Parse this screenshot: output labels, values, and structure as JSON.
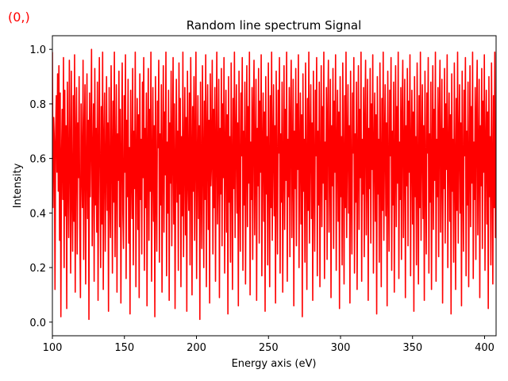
{
  "corner_label": "(0,)",
  "chart_data": {
    "type": "line",
    "title": "Random line spectrum Signal",
    "xlabel": "Energy axis (eV)",
    "ylabel": "Intensity",
    "xlim": [
      100,
      408
    ],
    "ylim": [
      -0.05,
      1.05
    ],
    "x_ticks": [
      100,
      150,
      200,
      250,
      300,
      350,
      400
    ],
    "x_tick_labels": [
      "100",
      "150",
      "200",
      "250",
      "300",
      "350",
      "400"
    ],
    "y_ticks": [
      0.0,
      0.2,
      0.4,
      0.6,
      0.8,
      1.0
    ],
    "y_tick_labels": [
      "0.0",
      "0.2",
      "0.4",
      "0.6",
      "0.8",
      "1.0"
    ],
    "grid": false,
    "series": [
      {
        "color": "#ff0000",
        "x_start": 100,
        "x_end": 408,
        "x_step": 0.5,
        "values": [
          0.99,
          0.42,
          0.75,
          0.66,
          0.12,
          0.7,
          0.83,
          0.55,
          0.91,
          0.48,
          0.94,
          0.3,
          0.84,
          0.02,
          0.6,
          0.78,
          0.45,
          0.97,
          0.2,
          0.85,
          0.39,
          0.72,
          0.05,
          0.88,
          0.54,
          0.31,
          0.96,
          0.62,
          0.18,
          0.92,
          0.47,
          0.26,
          0.83,
          0.37,
          0.98,
          0.11,
          0.66,
          0.86,
          0.25,
          0.73,
          0.53,
          0.9,
          0.35,
          0.09,
          0.8,
          0.58,
          0.42,
          0.96,
          0.23,
          0.68,
          0.87,
          0.14,
          0.55,
          0.91,
          0.38,
          0.74,
          0.01,
          0.84,
          0.46,
          0.67,
          1.0,
          0.28,
          0.59,
          0.8,
          0.15,
          0.93,
          0.43,
          0.71,
          0.33,
          0.88,
          0.08,
          0.62,
          0.97,
          0.51,
          0.2,
          0.79,
          0.36,
          0.99,
          0.12,
          0.65,
          0.84,
          0.26,
          0.56,
          0.9,
          0.41,
          0.73,
          0.04,
          0.86,
          0.49,
          0.31,
          0.94,
          0.63,
          0.18,
          0.81,
          0.44,
          0.99,
          0.24,
          0.58,
          0.87,
          0.11,
          0.69,
          0.52,
          0.92,
          0.35,
          0.78,
          0.07,
          0.61,
          0.95,
          0.4,
          0.27,
          0.83,
          0.55,
          0.98,
          0.16,
          0.74,
          0.46,
          0.89,
          0.29,
          0.64,
          0.03,
          0.85,
          0.57,
          0.38,
          0.93,
          0.21,
          0.7,
          0.49,
          0.99,
          0.13,
          0.6,
          0.82,
          0.34,
          0.76,
          0.09,
          0.91,
          0.45,
          0.67,
          0.25,
          0.88,
          0.53,
          0.97,
          0.19,
          0.71,
          0.42,
          0.84,
          0.06,
          0.62,
          0.93,
          0.3,
          0.78,
          0.48,
          0.99,
          0.15,
          0.57,
          0.86,
          0.37,
          0.72,
          0.02,
          0.9,
          0.5,
          0.26,
          0.81,
          0.64,
          0.96,
          0.22,
          0.69,
          0.43,
          0.87,
          0.11,
          0.59,
          0.94,
          0.33,
          0.77,
          0.54,
          0.99,
          0.17,
          0.66,
          0.4,
          0.85,
          0.08,
          0.73,
          0.51,
          0.92,
          0.28,
          0.63,
          0.97,
          0.36,
          0.8,
          0.05,
          0.58,
          0.89,
          0.44,
          0.7,
          0.19,
          0.95,
          0.47,
          0.82,
          0.13,
          0.68,
          0.39,
          0.99,
          0.24,
          0.61,
          0.86,
          0.32,
          0.75,
          0.04,
          0.92,
          0.55,
          0.41,
          0.84,
          0.21,
          0.97,
          0.64,
          0.1,
          0.79,
          0.48,
          0.9,
          0.3,
          0.66,
          0.99,
          0.16,
          0.57,
          0.83,
          0.38,
          0.72,
          0.01,
          0.88,
          0.52,
          0.27,
          0.94,
          0.62,
          0.2,
          0.81,
          0.45,
          0.98,
          0.13,
          0.69,
          0.87,
          0.34,
          0.74,
          0.07,
          0.91,
          0.5,
          0.6,
          0.96,
          0.25,
          0.78,
          0.42,
          0.86,
          0.15,
          0.65,
          0.99,
          0.36,
          0.56,
          0.89,
          0.09,
          0.71,
          0.47,
          0.93,
          0.28,
          0.8,
          0.53,
          0.97,
          0.18,
          0.63,
          0.85,
          0.33,
          0.76,
          0.03,
          0.9,
          0.44,
          0.68,
          0.22,
          0.95,
          0.58,
          0.12,
          0.82,
          0.49,
          0.99,
          0.31,
          0.67,
          0.87,
          0.4,
          0.73,
          0.06,
          0.92,
          0.54,
          0.26,
          0.84,
          0.61,
          0.97,
          0.19,
          0.7,
          0.43,
          0.88,
          0.14,
          0.59,
          0.94,
          0.35,
          0.79,
          0.51,
          0.99,
          0.1,
          0.66,
          0.45,
          0.86,
          0.23,
          0.75,
          0.96,
          0.32,
          0.6,
          0.89,
          0.08,
          0.71,
          0.5,
          0.93,
          0.29,
          0.81,
          0.55,
          0.98,
          0.17,
          0.64,
          0.84,
          0.37,
          0.77,
          0.04,
          0.9,
          0.47,
          0.68,
          0.21,
          0.95,
          0.57,
          0.13,
          0.83,
          0.42,
          0.99,
          0.3,
          0.65,
          0.87,
          0.39,
          0.72,
          0.07,
          0.92,
          0.53,
          0.25,
          0.85,
          0.62,
          0.97,
          0.18,
          0.69,
          0.44,
          0.88,
          0.11,
          0.58,
          0.94,
          0.34,
          0.78,
          0.52,
          0.99,
          0.15,
          0.67,
          0.46,
          0.86,
          0.24,
          0.74,
          0.96,
          0.31,
          0.61,
          0.89,
          0.06,
          0.7,
          0.49,
          0.93,
          0.28,
          0.8,
          0.56,
          0.98,
          0.2,
          0.63,
          0.84,
          0.36,
          0.76,
          0.02,
          0.91,
          0.48,
          0.67,
          0.22,
          0.95,
          0.59,
          0.12,
          0.82,
          0.41,
          0.99,
          0.29,
          0.66,
          0.87,
          0.38,
          0.73,
          0.08,
          0.92,
          0.54,
          0.26,
          0.85,
          0.61,
          0.97,
          0.17,
          0.7,
          0.43,
          0.88,
          0.13,
          0.57,
          0.94,
          0.35,
          0.79,
          0.51,
          0.99,
          0.16,
          0.66,
          0.45,
          0.86,
          0.23,
          0.75,
          0.96,
          0.33,
          0.6,
          0.89,
          0.09,
          0.72,
          0.5,
          0.93,
          0.27,
          0.81,
          0.55,
          0.98,
          0.19,
          0.64,
          0.85,
          0.37,
          0.77,
          0.05,
          0.9,
          0.46,
          0.68,
          0.21,
          0.95,
          0.58,
          0.14,
          0.83,
          0.42,
          0.99,
          0.31,
          0.65,
          0.87,
          0.4,
          0.72,
          0.07,
          0.92,
          0.52,
          0.25,
          0.84,
          0.62,
          0.97,
          0.18,
          0.69,
          0.44,
          0.88,
          0.12,
          0.59,
          0.94,
          0.34,
          0.78,
          0.53,
          0.99,
          0.15,
          0.67,
          0.47,
          0.86,
          0.24,
          0.74,
          0.96,
          0.32,
          0.61,
          0.89,
          0.08,
          0.71,
          0.49,
          0.93,
          0.29,
          0.8,
          0.56,
          0.98,
          0.18,
          0.63,
          0.84,
          0.37,
          0.76,
          0.03,
          0.9,
          0.47,
          0.67,
          0.22,
          0.95,
          0.59,
          0.13,
          0.82,
          0.41,
          0.99,
          0.3,
          0.66,
          0.87,
          0.39,
          0.73,
          0.06,
          0.92,
          0.54,
          0.26,
          0.85,
          0.61,
          0.97,
          0.19,
          0.7,
          0.43,
          0.88,
          0.11,
          0.58,
          0.94,
          0.35,
          0.79,
          0.51,
          0.99,
          0.16,
          0.66,
          0.45,
          0.86,
          0.23,
          0.75,
          0.96,
          0.31,
          0.6,
          0.89,
          0.09,
          0.72,
          0.5,
          0.93,
          0.28,
          0.81,
          0.55,
          0.98,
          0.17,
          0.64,
          0.85,
          0.36,
          0.77,
          0.04,
          0.9,
          0.46,
          0.68,
          0.21,
          0.95,
          0.57,
          0.14,
          0.83,
          0.42,
          0.99,
          0.3,
          0.65,
          0.87,
          0.38,
          0.72,
          0.08,
          0.92,
          0.53,
          0.25,
          0.84,
          0.62,
          0.97,
          0.18,
          0.69,
          0.44,
          0.88,
          0.12,
          0.59,
          0.94,
          0.34,
          0.78,
          0.52,
          0.99,
          0.15,
          0.67,
          0.46,
          0.86,
          0.24,
          0.74,
          0.96,
          0.33,
          0.61,
          0.89,
          0.07,
          0.71,
          0.49,
          0.93,
          0.29,
          0.8,
          0.56,
          0.98,
          0.2,
          0.63,
          0.84,
          0.37,
          0.76,
          0.03,
          0.91,
          0.48,
          0.67,
          0.22,
          0.95,
          0.58,
          0.12,
          0.82,
          0.41,
          0.99,
          0.29,
          0.66,
          0.87,
          0.4,
          0.73,
          0.06,
          0.92,
          0.54,
          0.26,
          0.85,
          0.61,
          0.97,
          0.17,
          0.7,
          0.43,
          0.88,
          0.13,
          0.57,
          0.94,
          0.35,
          0.79,
          0.51,
          0.99,
          0.16,
          0.66,
          0.45,
          0.86,
          0.23,
          0.75,
          0.96,
          0.32,
          0.6,
          0.89,
          0.09,
          0.72,
          0.5,
          0.93,
          0.27,
          0.81,
          0.55,
          0.98,
          0.19,
          0.64,
          0.85,
          0.36,
          0.77,
          0.05,
          0.9,
          0.46,
          0.68,
          0.21,
          0.95,
          0.58,
          0.14,
          0.83,
          0.42,
          0.99,
          0.31,
          0.65
        ]
      }
    ]
  }
}
